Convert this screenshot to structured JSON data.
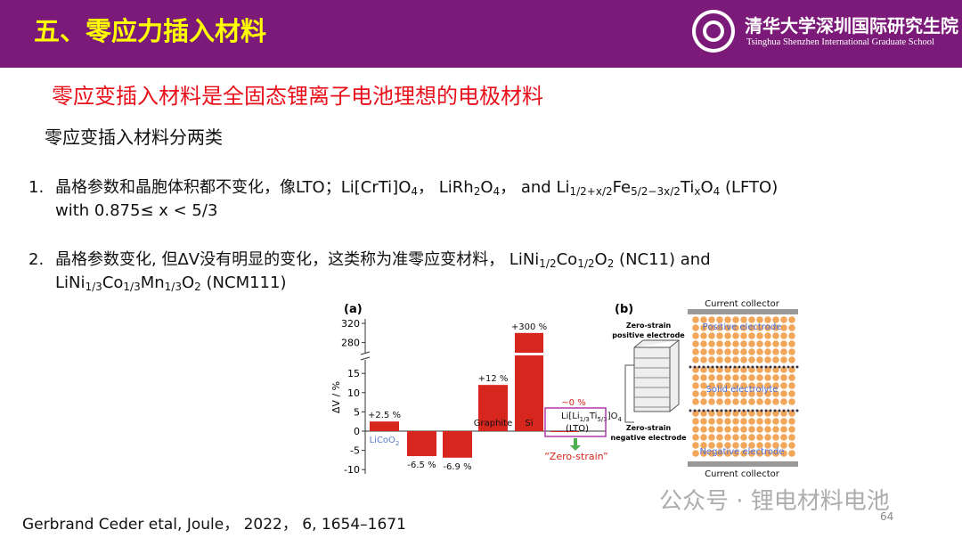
{
  "header": {
    "title": "五、零应力插入材料",
    "school_cn": "清华大学深圳国际研究生院",
    "school_en": "Tsinghua Shenzhen International Graduate School"
  },
  "subtitle": "零应变插入材料是全固态锂离子电池理想的电极材料",
  "intro": "零应变插入材料分两类",
  "items": [
    {
      "number": "1.",
      "lines": [
        [
          {
            "text": "晶格参数和晶胞体积都不变化，像LTO；Li[CrTi]O"
          },
          {
            "text": "4",
            "sub": true
          },
          {
            "text": "，  LiRh"
          },
          {
            "text": "2",
            "sub": true
          },
          {
            "text": "O"
          },
          {
            "text": "4",
            "sub": true
          },
          {
            "text": "，   and Li"
          },
          {
            "text": "1/2+x/2",
            "sub": true
          },
          {
            "text": "Fe"
          },
          {
            "text": "5/2−3x/2",
            "sub": true
          },
          {
            "text": "Ti"
          },
          {
            "text": "x",
            "sub": true
          },
          {
            "text": "O"
          },
          {
            "text": "4",
            "sub": true
          },
          {
            "text": " (LFTO)"
          }
        ],
        [
          {
            "text": "with 0.875≤ x < 5/3"
          }
        ]
      ]
    },
    {
      "number": "2.",
      "lines": [
        [
          {
            "text": "晶格参数变化, 但ΔV没有明显的变化，这类称为准零应变材料，  LiNi"
          },
          {
            "text": "1/2",
            "sub": true
          },
          {
            "text": "Co"
          },
          {
            "text": "1/2",
            "sub": true
          },
          {
            "text": "O"
          },
          {
            "text": "2",
            "sub": true
          },
          {
            "text": " (NC11)  and"
          }
        ],
        [
          {
            "text": "LiNi"
          },
          {
            "text": "1/3",
            "sub": true
          },
          {
            "text": "Co"
          },
          {
            "text": "1/3",
            "sub": true
          },
          {
            "text": "Mn"
          },
          {
            "text": "1/3",
            "sub": true
          },
          {
            "text": "O"
          },
          {
            "text": "2",
            "sub": true
          },
          {
            "text": " (NCM111)"
          }
        ]
      ]
    }
  ],
  "figure_a": {
    "panel": "(a)",
    "y_label": "ΔV / %",
    "color": "#d7261e",
    "categories": [
      [
        {
          "text": "LiCoO"
        },
        {
          "text": "2",
          "sub": true
        }
      ],
      null,
      null,
      [
        {
          "text": "Graphite"
        }
      ],
      [
        {
          "text": "Si"
        }
      ],
      [
        {
          "text": "Li[Li"
        },
        {
          "text": "1/3",
          "sub": true
        },
        {
          "text": "Ti"
        },
        {
          "text": "5/3",
          "sub": true
        },
        {
          "text": "]O"
        },
        {
          "text": "4",
          "sub": true
        }
      ]
    ],
    "values": [
      2.5,
      -6.5,
      -6.9,
      12,
      300,
      0
    ],
    "value_labels": [
      "+2.5 %",
      "-6.5 %",
      "-6.9 %",
      "+12 %",
      "+300 %",
      "~0 %"
    ],
    "lto_name": "(LTO)",
    "zero_strain": "“Zero-strain”",
    "yticks": [
      320,
      280,
      15,
      10,
      5,
      0,
      -5,
      -10
    ]
  },
  "figure_b": {
    "panel": "(b)",
    "top_collector": "Current collector",
    "positive": "Positive electrode",
    "electrolyte": "Solid electrolyte",
    "negative": "Negative electrode",
    "bottom_collector": "Current collector",
    "zs_positive": [
      "Zero-strain",
      "positive electrode"
    ],
    "zs_negative": [
      "Zero-strain",
      "negative electrode"
    ]
  },
  "citation": "Gerbrand Ceder etal, Joule， 2022， 6, 1654–1671",
  "watermark": "公众号 · 锂电材料电池",
  "page_number": "64"
}
